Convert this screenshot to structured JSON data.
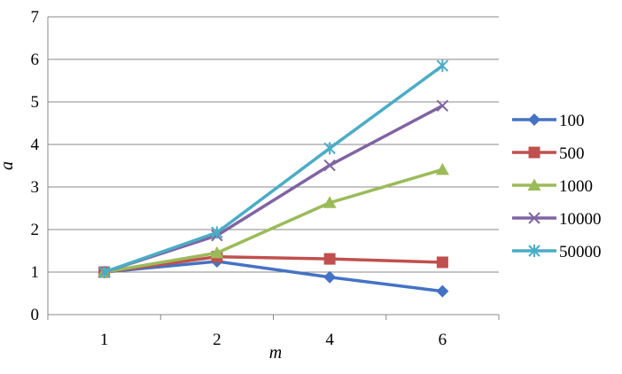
{
  "chart_data": {
    "type": "line",
    "title": "",
    "xlabel": "m",
    "ylabel": "a",
    "categories": [
      "1",
      "2",
      "4",
      "6"
    ],
    "ylim": [
      0,
      7
    ],
    "yticks": [
      "0",
      "1",
      "2",
      "3",
      "4",
      "5",
      "6",
      "7"
    ],
    "grid": true,
    "legend_position": "right",
    "series": [
      {
        "name": "100",
        "values": [
          1.0,
          1.25,
          0.88,
          0.55
        ],
        "color": "#4472C4",
        "marker": "diamond"
      },
      {
        "name": "500",
        "values": [
          1.0,
          1.36,
          1.31,
          1.23
        ],
        "color": "#C0504D",
        "marker": "square"
      },
      {
        "name": "1000",
        "values": [
          1.0,
          1.45,
          2.63,
          3.41
        ],
        "color": "#9BBB59",
        "marker": "triangle"
      },
      {
        "name": "10000",
        "values": [
          1.0,
          1.86,
          3.51,
          4.91
        ],
        "color": "#8064A2",
        "marker": "x"
      },
      {
        "name": "50000",
        "values": [
          1.0,
          1.93,
          3.91,
          5.85
        ],
        "color": "#4BACC6",
        "marker": "star"
      }
    ]
  }
}
